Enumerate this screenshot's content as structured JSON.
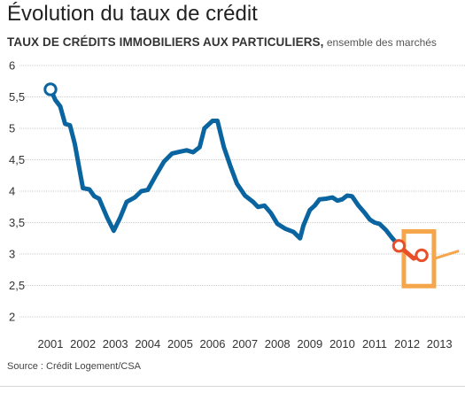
{
  "title": "Évolution du taux de crédit",
  "subtitle_main": "TAUX DE CRÉDITS IMMOBILIERS AUX PARTICULIERS,",
  "subtitle_sub": " ensemble des marchés",
  "source": "Source : Crédit Logement/CSA",
  "colors": {
    "line": "#0a64a0",
    "highlight_line": "#e8502a",
    "highlight_box": "#f5a54a",
    "grid": "#cccccc"
  },
  "chart_data": {
    "type": "line",
    "title": "Évolution du taux de crédit",
    "xlabel": "",
    "ylabel": "",
    "xlim": [
      2000.6,
      2013.5
    ],
    "ylim": [
      2,
      6
    ],
    "y_ticks": [
      "2",
      "2,5",
      "3",
      "3,5",
      "4",
      "4,5",
      "5",
      "5,5",
      "6"
    ],
    "y_tick_values": [
      2,
      2.5,
      3,
      3.5,
      4,
      4.5,
      5,
      5.5,
      6
    ],
    "x_ticks": [
      "2001",
      "2002",
      "2003",
      "2004",
      "2005",
      "2006",
      "2007",
      "2008",
      "2009",
      "2010",
      "2011",
      "2012",
      "2013"
    ],
    "x_tick_values": [
      2001,
      2002,
      2003,
      2004,
      2005,
      2006,
      2007,
      2008,
      2009,
      2010,
      2011,
      2012,
      2013
    ],
    "grid": "horizontal",
    "series": [
      {
        "values": [
          [
            2001.0,
            5.62
          ],
          [
            2001.15,
            5.45
          ],
          [
            2001.3,
            5.35
          ],
          [
            2001.45,
            5.07
          ],
          [
            2001.6,
            5.05
          ],
          [
            2001.75,
            4.75
          ],
          [
            2002.0,
            4.05
          ],
          [
            2002.2,
            4.03
          ],
          [
            2002.35,
            3.92
          ],
          [
            2002.5,
            3.88
          ],
          [
            2002.75,
            3.58
          ],
          [
            2002.95,
            3.37
          ],
          [
            2003.15,
            3.58
          ],
          [
            2003.35,
            3.83
          ],
          [
            2003.6,
            3.9
          ],
          [
            2003.8,
            4.0
          ],
          [
            2004.0,
            4.02
          ],
          [
            2004.25,
            4.25
          ],
          [
            2004.5,
            4.47
          ],
          [
            2004.75,
            4.6
          ],
          [
            2005.0,
            4.63
          ],
          [
            2005.2,
            4.65
          ],
          [
            2005.4,
            4.62
          ],
          [
            2005.6,
            4.7
          ],
          [
            2005.75,
            5.0
          ],
          [
            2006.0,
            5.12
          ],
          [
            2006.15,
            5.12
          ],
          [
            2006.35,
            4.7
          ],
          [
            2006.55,
            4.4
          ],
          [
            2006.75,
            4.12
          ],
          [
            2007.0,
            3.93
          ],
          [
            2007.25,
            3.83
          ],
          [
            2007.4,
            3.75
          ],
          [
            2007.6,
            3.77
          ],
          [
            2007.8,
            3.65
          ],
          [
            2008.0,
            3.48
          ],
          [
            2008.25,
            3.4
          ],
          [
            2008.5,
            3.35
          ],
          [
            2008.7,
            3.25
          ],
          [
            2008.8,
            3.45
          ],
          [
            2009.0,
            3.7
          ],
          [
            2009.15,
            3.77
          ],
          [
            2009.3,
            3.87
          ],
          [
            2009.5,
            3.88
          ],
          [
            2009.7,
            3.9
          ],
          [
            2009.85,
            3.85
          ],
          [
            2010.0,
            3.87
          ],
          [
            2010.15,
            3.93
          ],
          [
            2010.3,
            3.92
          ],
          [
            2010.5,
            3.77
          ],
          [
            2010.7,
            3.65
          ],
          [
            2010.85,
            3.55
          ],
          [
            2011.0,
            3.5
          ],
          [
            2011.15,
            3.48
          ],
          [
            2011.35,
            3.38
          ],
          [
            2011.55,
            3.25
          ],
          [
            2011.75,
            3.13
          ]
        ]
      },
      {
        "values": [
          [
            2011.75,
            3.13
          ],
          [
            2012.0,
            3.02
          ],
          [
            2012.2,
            2.93
          ],
          [
            2012.45,
            2.98
          ]
        ]
      }
    ]
  }
}
